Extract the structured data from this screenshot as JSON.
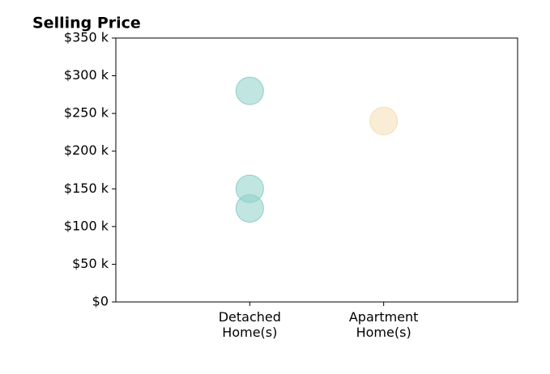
{
  "chart_data": {
    "type": "scatter",
    "title": "Selling Price",
    "xlim": [
      -1,
      2
    ],
    "xticks": [
      {
        "value": 0,
        "label": "Detached\nHome(s)"
      },
      {
        "value": 1,
        "label": "Apartment\nHome(s)"
      }
    ],
    "ylim": [
      0,
      350000
    ],
    "yticks": [
      {
        "value": 0,
        "label": "$0"
      },
      {
        "value": 50000,
        "label": "$50 k"
      },
      {
        "value": 100000,
        "label": "$100 k"
      },
      {
        "value": 150000,
        "label": "$150 k"
      },
      {
        "value": 200000,
        "label": "$200 k"
      },
      {
        "value": 250000,
        "label": "$250 k"
      },
      {
        "value": 300000,
        "label": "$300 k"
      },
      {
        "value": 350000,
        "label": "$350 k"
      }
    ],
    "series": [
      {
        "color": "#8ecfc9",
        "x": [
          0,
          0,
          0
        ],
        "values": [
          280000,
          150000,
          124000
        ]
      },
      {
        "color": "#f5deb3",
        "x": [
          1
        ],
        "values": [
          240000
        ]
      }
    ]
  }
}
